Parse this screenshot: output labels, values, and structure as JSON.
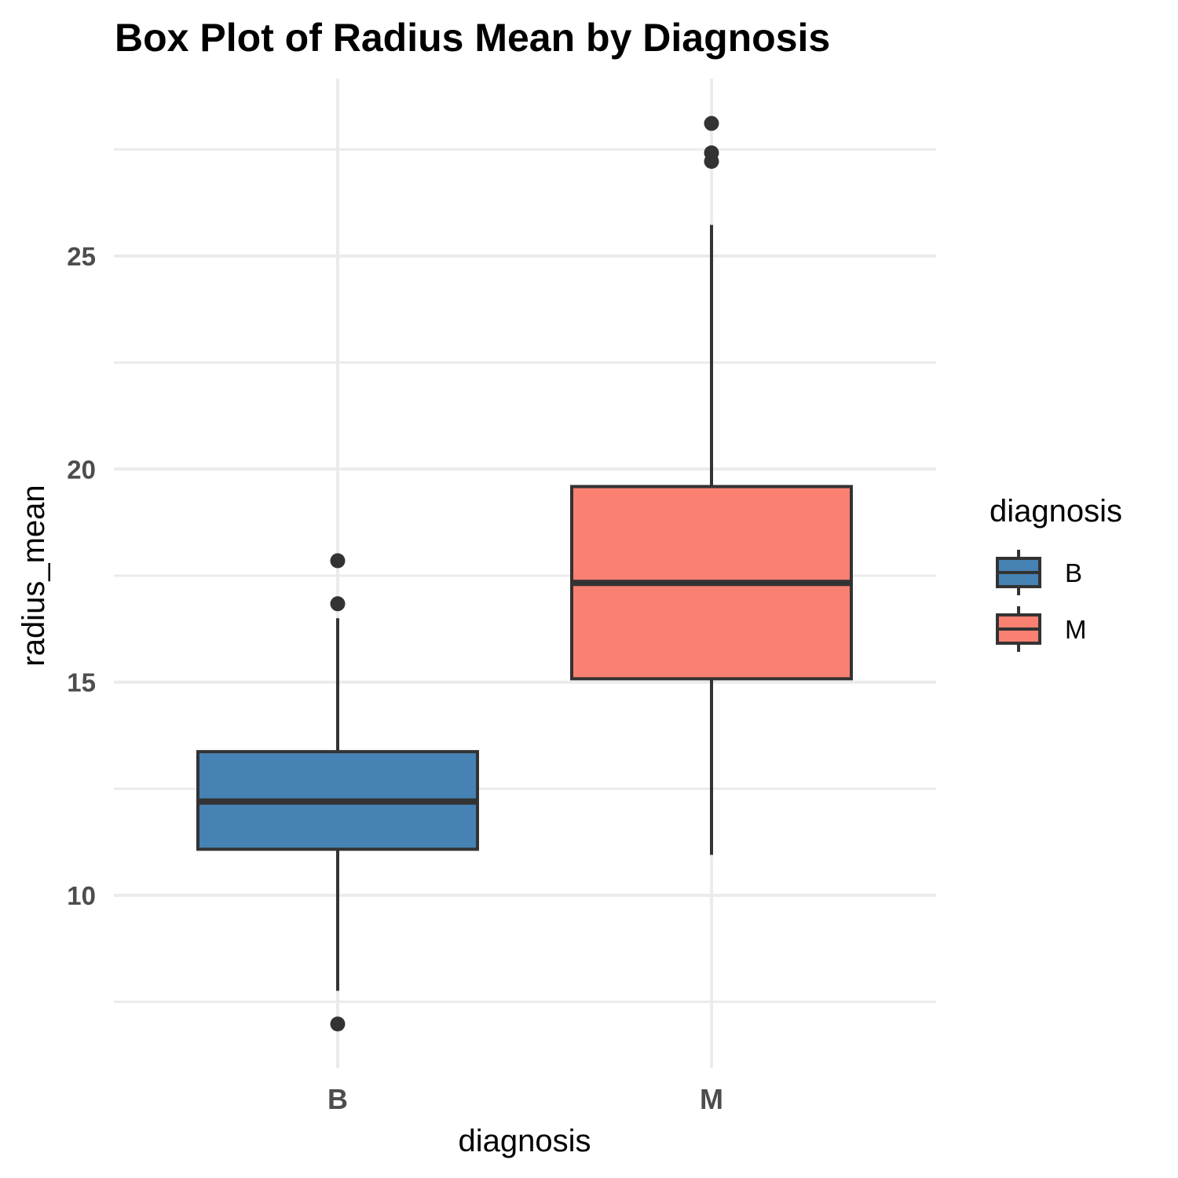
{
  "chart_data": {
    "type": "boxplot",
    "title": "Box Plot of Radius Mean  by Diagnosis",
    "xlabel": "diagnosis",
    "ylabel": "radius_mean",
    "ylim": [
      6.2,
      28.7
    ],
    "y_ticks": [
      10,
      15,
      20,
      25
    ],
    "y_minor_ticks": [
      7.5,
      12.5,
      17.5,
      22.5,
      27.5
    ],
    "grid": true,
    "legend": {
      "title": "diagnosis",
      "placement": "right",
      "entries": [
        "B",
        "M"
      ]
    },
    "categories": [
      "B",
      "M"
    ],
    "boxes": [
      {
        "name": "B",
        "color": "#4682b4",
        "q1": 11.08,
        "median": 12.2,
        "q3": 13.37,
        "whisker_low": 7.76,
        "whisker_high": 16.5,
        "outliers": [
          17.85,
          16.84,
          6.98
        ]
      },
      {
        "name": "M",
        "color": "#fa8072",
        "q1": 15.08,
        "median": 17.33,
        "q3": 19.59,
        "whisker_low": 10.95,
        "whisker_high": 25.73,
        "outliers": [
          28.11,
          27.42,
          27.22
        ]
      }
    ]
  }
}
